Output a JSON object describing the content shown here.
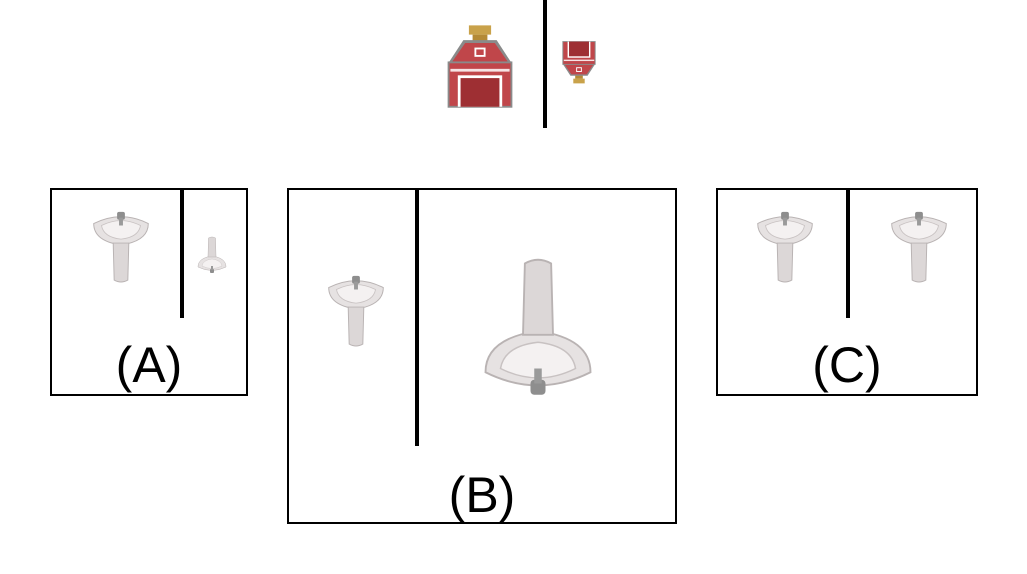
{
  "example": {
    "description_hidden": false,
    "left_object": "barn-icon",
    "right_object": "barn-icon-small-inverted"
  },
  "options": [
    {
      "label": "(A)",
      "left_object": "sink-icon",
      "right_object": "sink-icon-small-inverted"
    },
    {
      "label": "(B)",
      "left_object": "sink-icon",
      "right_object": "sink-icon-large-inverted"
    },
    {
      "label": "(C)",
      "left_object": "sink-icon",
      "right_object": "sink-icon"
    }
  ],
  "colors": {
    "barn_red": "#c0464a",
    "barn_dark": "#9e2f33",
    "barn_roof": "#8a8a8a",
    "barn_cupola": "#c9a24a",
    "sink_white": "#e6e2e2",
    "sink_shadow": "#b9b3b3",
    "faucet_gray": "#8e8e8e"
  }
}
